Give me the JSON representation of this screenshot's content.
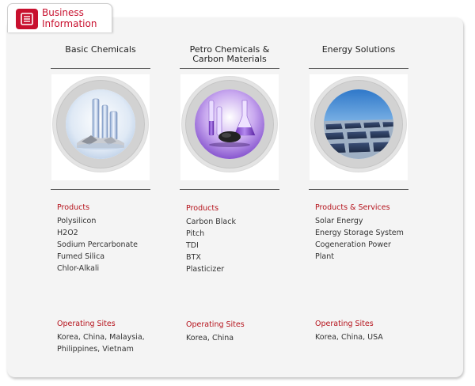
{
  "header": {
    "tab_label": "Business\nInformation",
    "tab_line1": "Business",
    "tab_line2": "Information",
    "icon": "document-list-icon",
    "accent_color": "#c8102e"
  },
  "columns": [
    {
      "title": "Basic Chemicals",
      "image": "lab-glassware-silver-image",
      "products_heading": "Products",
      "products": [
        "Polysilicon",
        "H2O2",
        "Sodium Percarbonate",
        "Fumed Silica",
        "Chlor-Alkali"
      ],
      "sites_heading": "Operating Sites",
      "sites_line1": "Korea, China, Malaysia,",
      "sites_line2": "Philippines, Vietnam"
    },
    {
      "title_line1": "Petro Chemicals &",
      "title_line2": "Carbon Materials",
      "image": "purple-flasks-carbon-image",
      "products_heading": "Products",
      "products": [
        "Carbon Black",
        "Pitch",
        "TDI",
        "BTX",
        "Plasticizer"
      ],
      "sites_heading": "Operating Sites",
      "sites_line1": "Korea, China"
    },
    {
      "title": "Energy Solutions",
      "image": "solar-panel-field-image",
      "products_heading": "Products & Services",
      "products": [
        "Solar Energy",
        "Energy Storage System",
        "Cogeneration Power",
        "Plant"
      ],
      "sites_heading": "Operating Sites",
      "sites_line1": "Korea, China, USA"
    }
  ]
}
